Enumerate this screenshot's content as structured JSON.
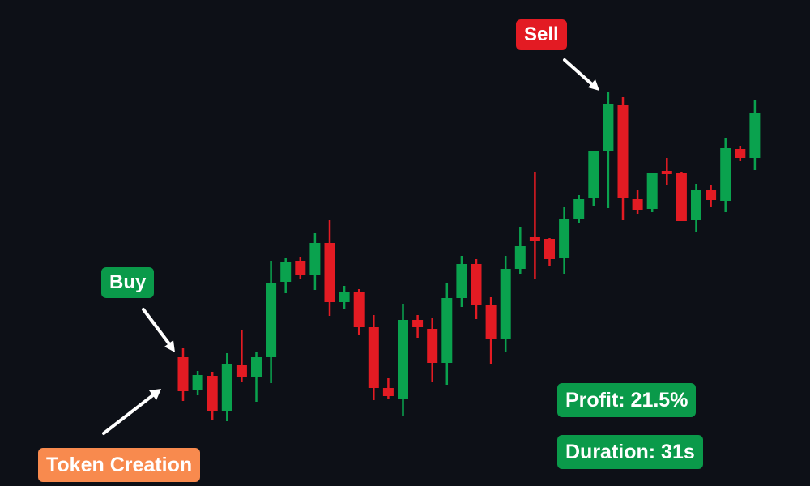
{
  "colors": {
    "background": "#0d1017",
    "up": "#0aa24e",
    "down": "#e31b23",
    "arrow": "#ffffff",
    "sell_badge": "#e31b23",
    "buy_badge": "#0a9a4a",
    "token_badge": "#f88a4e",
    "stats_badge": "#0a9a4a"
  },
  "annotations": {
    "sell": "Sell",
    "buy": "Buy",
    "token_creation": "Token Creation",
    "profit": "Profit: 21.5%",
    "duration": "Duration: 31s"
  },
  "chart_data": {
    "type": "candlestick",
    "title": "",
    "xlabel": "",
    "ylabel": "",
    "axes_visible": false,
    "grid": false,
    "ylim": [
      0,
      600
    ],
    "candles": [
      {
        "o": 159,
        "h": 170,
        "l": 105,
        "c": 117
      },
      {
        "o": 118,
        "h": 142,
        "l": 112,
        "c": 137
      },
      {
        "o": 136,
        "h": 141,
        "l": 81,
        "c": 92
      },
      {
        "o": 93,
        "h": 164,
        "l": 80,
        "c": 150
      },
      {
        "o": 149,
        "h": 192,
        "l": 128,
        "c": 134
      },
      {
        "o": 134,
        "h": 166,
        "l": 104,
        "c": 159
      },
      {
        "o": 159,
        "h": 278,
        "l": 127,
        "c": 251
      },
      {
        "o": 252,
        "h": 282,
        "l": 238,
        "c": 277
      },
      {
        "o": 278,
        "h": 283,
        "l": 255,
        "c": 260
      },
      {
        "o": 260,
        "h": 312,
        "l": 242,
        "c": 300
      },
      {
        "o": 300,
        "h": 329,
        "l": 210,
        "c": 227
      },
      {
        "o": 227,
        "h": 247,
        "l": 219,
        "c": 239
      },
      {
        "o": 239,
        "h": 243,
        "l": 186,
        "c": 196
      },
      {
        "o": 196,
        "h": 211,
        "l": 106,
        "c": 121
      },
      {
        "o": 121,
        "h": 133,
        "l": 108,
        "c": 111
      },
      {
        "o": 108,
        "h": 225,
        "l": 87,
        "c": 205
      },
      {
        "o": 205,
        "h": 211,
        "l": 183,
        "c": 196
      },
      {
        "o": 194,
        "h": 207,
        "l": 129,
        "c": 152
      },
      {
        "o": 152,
        "h": 251,
        "l": 125,
        "c": 232
      },
      {
        "o": 232,
        "h": 284,
        "l": 221,
        "c": 274
      },
      {
        "o": 274,
        "h": 280,
        "l": 206,
        "c": 223
      },
      {
        "o": 223,
        "h": 233,
        "l": 151,
        "c": 181
      },
      {
        "o": 181,
        "h": 284,
        "l": 166,
        "c": 268
      },
      {
        "o": 268,
        "h": 320,
        "l": 262,
        "c": 296
      },
      {
        "o": 308,
        "h": 388,
        "l": 255,
        "c": 302
      },
      {
        "o": 305,
        "h": 306,
        "l": 271,
        "c": 280
      },
      {
        "o": 281,
        "h": 344,
        "l": 262,
        "c": 330
      },
      {
        "o": 330,
        "h": 359,
        "l": 325,
        "c": 354
      },
      {
        "o": 355,
        "h": 413,
        "l": 346,
        "c": 413
      },
      {
        "o": 414,
        "h": 486,
        "l": 343,
        "c": 471
      },
      {
        "o": 470,
        "h": 480,
        "l": 328,
        "c": 355
      },
      {
        "o": 354,
        "h": 365,
        "l": 336,
        "c": 341
      },
      {
        "o": 342,
        "h": 387,
        "l": 338,
        "c": 387
      },
      {
        "o": 389,
        "h": 405,
        "l": 372,
        "c": 385
      },
      {
        "o": 386,
        "h": 388,
        "l": 329,
        "c": 327
      },
      {
        "o": 328,
        "h": 373,
        "l": 314,
        "c": 365
      },
      {
        "o": 365,
        "h": 372,
        "l": 345,
        "c": 353
      },
      {
        "o": 352,
        "h": 430,
        "l": 338,
        "c": 417
      },
      {
        "o": 416,
        "h": 420,
        "l": 401,
        "c": 405
      },
      {
        "o": 405,
        "h": 476,
        "l": 390,
        "c": 461
      }
    ]
  }
}
